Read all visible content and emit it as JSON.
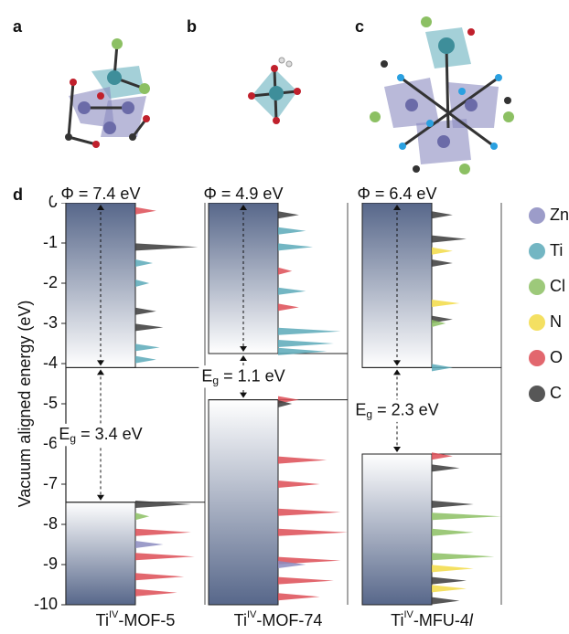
{
  "panels": [
    "a",
    "b",
    "c",
    "d"
  ],
  "chart_data": {
    "type": "band-alignment",
    "ylabel": "Vacuum aligned energy (eV)",
    "ylim": [
      -10,
      0
    ],
    "yticks": [
      0,
      -1,
      -2,
      -3,
      -4,
      -5,
      -6,
      -7,
      -8,
      -9,
      -10
    ],
    "legend": {
      "names": [
        "Zn",
        "Ti",
        "Cl",
        "N",
        "O",
        "C"
      ],
      "colors": [
        "#8b8bc0",
        "#5aa9b8",
        "#8cc063",
        "#f2da46",
        "#dd4c55",
        "#3a3a3a"
      ]
    },
    "materials": [
      {
        "name": {
          "base": "Ti",
          "sup": "IV",
          "rest": "-MOF-5"
        },
        "work_function": 7.4,
        "work_function_label": "Φ = 7.4 eV",
        "cbm": -4.1,
        "vbm": -7.45,
        "gap": 3.4,
        "gap_label": {
          "main": "E",
          "sub": "g",
          "rest": " = 3.4 eV"
        },
        "pdos": {
          "energies": [
            -0.2,
            -1.1,
            -1.5,
            -2.0,
            -2.7,
            -3.1,
            -3.6,
            -3.9,
            -7.5,
            -7.8,
            -8.2,
            -8.5,
            -8.8,
            -9.3,
            -9.7
          ],
          "heights": [
            0.3,
            0.9,
            0.25,
            0.2,
            0.3,
            0.4,
            0.35,
            0.3,
            0.8,
            0.2,
            0.8,
            0.4,
            0.85,
            0.7,
            0.6
          ],
          "elements": [
            "O",
            "C",
            "Ti",
            "Ti",
            "C",
            "C",
            "Ti",
            "Ti",
            "C",
            "Cl",
            "O",
            "Zn",
            "O",
            "O",
            "O"
          ]
        }
      },
      {
        "name": {
          "base": "Ti",
          "sup": "IV",
          "rest": "-MOF-74"
        },
        "work_function": 4.9,
        "work_function_label": "Φ = 4.9 eV",
        "cbm": -3.75,
        "vbm": -4.9,
        "gap": 1.1,
        "gap_label": {
          "main": "E",
          "sub": "g",
          "rest": " = 1.1 eV"
        },
        "pdos": {
          "energies": [
            -0.3,
            -0.7,
            -1.1,
            -1.7,
            -2.2,
            -2.6,
            -3.2,
            -3.5,
            -3.7,
            -4.9,
            -5.0,
            -6.4,
            -7.0,
            -7.7,
            -8.2,
            -8.9,
            -9.0,
            -9.4,
            -9.8
          ],
          "heights": [
            0.3,
            0.4,
            0.5,
            0.2,
            0.4,
            0.3,
            0.9,
            0.8,
            0.7,
            0.3,
            0.2,
            0.7,
            0.6,
            0.9,
            1.0,
            0.9,
            0.4,
            0.8,
            0.6
          ],
          "elements": [
            "C",
            "Ti",
            "Ti",
            "O",
            "Ti",
            "O",
            "Ti",
            "Ti",
            "Ti",
            "O",
            "C",
            "O",
            "O",
            "O",
            "O",
            "O",
            "Zn",
            "O",
            "O"
          ]
        }
      },
      {
        "name": {
          "base": "Ti",
          "sup": "IV",
          "rest": "-MFU-4",
          "italic": "l"
        },
        "work_function": 6.4,
        "work_function_label": "Φ = 6.4 eV",
        "cbm": -4.1,
        "vbm": -6.25,
        "gap": 2.3,
        "gap_label": {
          "main": "E",
          "sub": "g",
          "rest": " = 2.3 eV"
        },
        "pdos": {
          "energies": [
            -0.3,
            -0.9,
            -1.2,
            -1.5,
            -2.5,
            -2.9,
            -3.0,
            -4.1,
            -6.3,
            -6.6,
            -7.5,
            -7.8,
            -8.2,
            -8.8,
            -9.1,
            -9.4,
            -9.6,
            -9.9
          ],
          "heights": [
            0.3,
            0.5,
            0.3,
            0.3,
            0.4,
            0.3,
            0.2,
            0.3,
            0.3,
            0.4,
            0.6,
            1.0,
            0.6,
            0.9,
            0.6,
            0.5,
            0.5,
            0.4
          ],
          "elements": [
            "C",
            "C",
            "N",
            "C",
            "N",
            "C",
            "Cl",
            "Ti",
            "O",
            "C",
            "C",
            "Cl",
            "Cl",
            "Cl",
            "N",
            "C",
            "N",
            "C"
          ]
        }
      }
    ]
  }
}
